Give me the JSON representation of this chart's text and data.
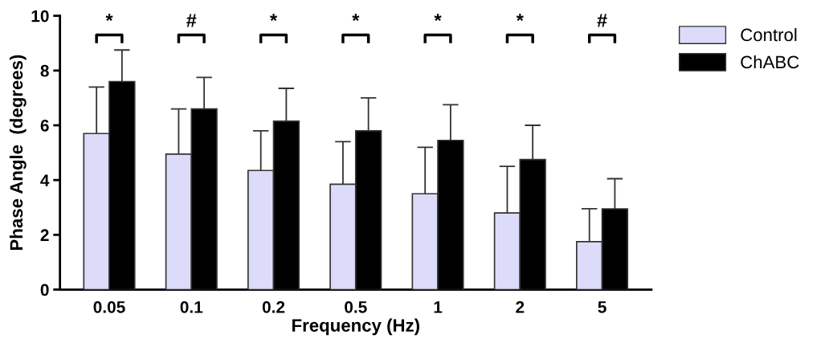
{
  "chart_data": {
    "type": "bar",
    "xlabel": "Frequency (Hz)",
    "ylabel": "Phase Angle  (degrees)",
    "categories": [
      "0.05",
      "0.1",
      "0.2",
      "0.5",
      "1",
      "2",
      "5"
    ],
    "series": [
      {
        "name": "Control",
        "color": "#dcdcfa",
        "values": [
          5.7,
          4.95,
          4.35,
          3.85,
          3.5,
          2.8,
          1.75
        ],
        "errors": [
          1.7,
          1.65,
          1.45,
          1.55,
          1.7,
          1.7,
          1.2
        ]
      },
      {
        "name": "ChABC",
        "color": "#000000",
        "values": [
          7.6,
          6.6,
          6.15,
          5.8,
          5.45,
          4.75,
          2.95
        ],
        "errors": [
          1.15,
          1.15,
          1.2,
          1.2,
          1.3,
          1.25,
          1.1
        ]
      }
    ],
    "ylim": [
      0,
      10
    ],
    "yticks": [
      0,
      2,
      4,
      6,
      8,
      10
    ],
    "grid": false,
    "legend": "top right",
    "annotations": [
      "*",
      "#",
      "*",
      "*",
      "*",
      "*",
      "#"
    ]
  }
}
